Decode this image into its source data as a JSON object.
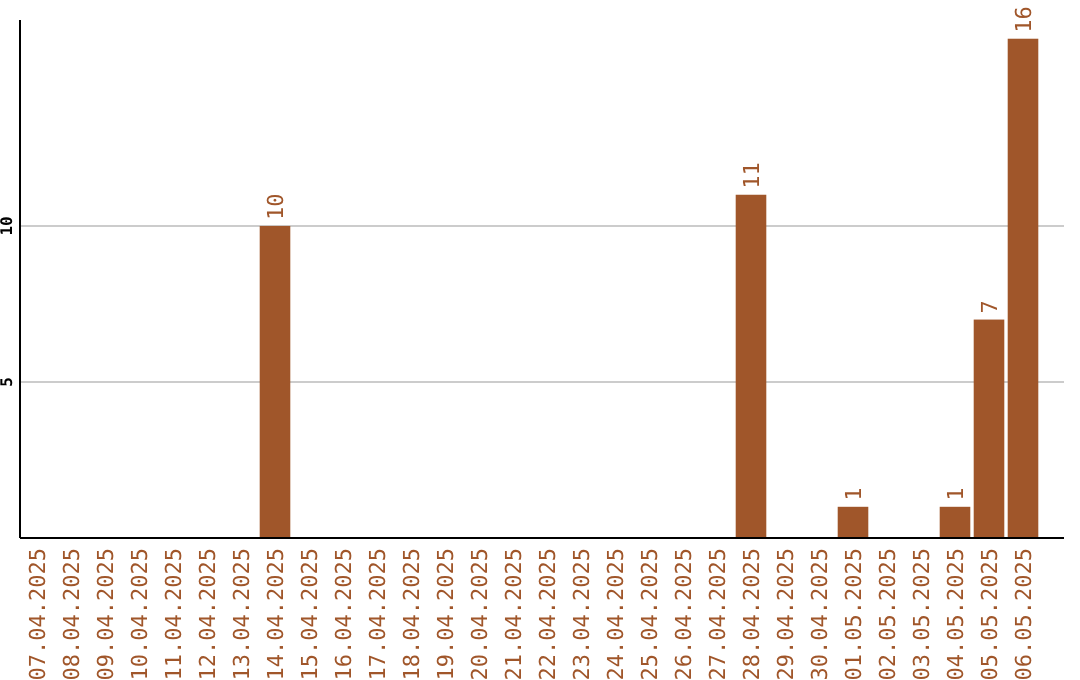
{
  "chart_data": {
    "type": "bar",
    "categories": [
      "07.04.2025",
      "08.04.2025",
      "09.04.2025",
      "10.04.2025",
      "11.04.2025",
      "12.04.2025",
      "13.04.2025",
      "14.04.2025",
      "15.04.2025",
      "16.04.2025",
      "17.04.2025",
      "18.04.2025",
      "19.04.2025",
      "20.04.2025",
      "21.04.2025",
      "22.04.2025",
      "23.04.2025",
      "24.04.2025",
      "25.04.2025",
      "26.04.2025",
      "27.04.2025",
      "28.04.2025",
      "29.04.2025",
      "30.04.2025",
      "01.05.2025",
      "02.05.2025",
      "03.05.2025",
      "04.05.2025",
      "05.05.2025",
      "06.05.2025"
    ],
    "values": [
      0,
      0,
      0,
      0,
      0,
      0,
      0,
      10,
      0,
      0,
      0,
      0,
      0,
      0,
      0,
      0,
      0,
      0,
      0,
      0,
      0,
      11,
      0,
      0,
      1,
      0,
      0,
      1,
      7,
      16
    ],
    "value_labels": [
      null,
      null,
      null,
      null,
      null,
      null,
      null,
      "10",
      null,
      null,
      null,
      null,
      null,
      null,
      null,
      null,
      null,
      null,
      null,
      null,
      null,
      "11",
      null,
      null,
      "1",
      null,
      null,
      "1",
      "7",
      "16"
    ],
    "color": "#a0562a",
    "ylim": [
      0,
      16.6
    ],
    "yticks": [
      5,
      10
    ],
    "grid": "y"
  }
}
